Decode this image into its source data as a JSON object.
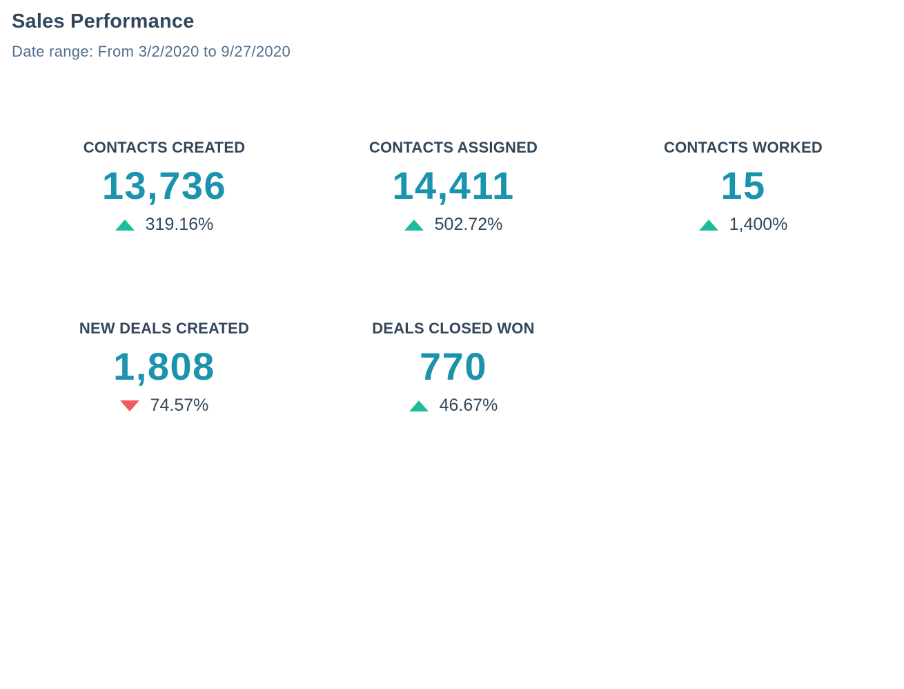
{
  "report": {
    "title": "Sales Performance",
    "date_range": "Date range: From 3/2/2020 to 9/27/2020"
  },
  "colors": {
    "value": "#1b93ad",
    "up": "#1fbc9c",
    "down": "#f25b5b",
    "text": "#33475b"
  },
  "kpis": [
    {
      "label": "CONTACTS CREATED",
      "value": "13,736",
      "change": "319.16%",
      "direction": "up"
    },
    {
      "label": "CONTACTS ASSIGNED",
      "value": "14,411",
      "change": "502.72%",
      "direction": "up"
    },
    {
      "label": "CONTACTS WORKED",
      "value": "15",
      "change": "1,400%",
      "direction": "up"
    },
    {
      "label": "NEW DEALS CREATED",
      "value": "1,808",
      "change": "74.57%",
      "direction": "down"
    },
    {
      "label": "DEALS CLOSED WON",
      "value": "770",
      "change": "46.67%",
      "direction": "up"
    }
  ]
}
